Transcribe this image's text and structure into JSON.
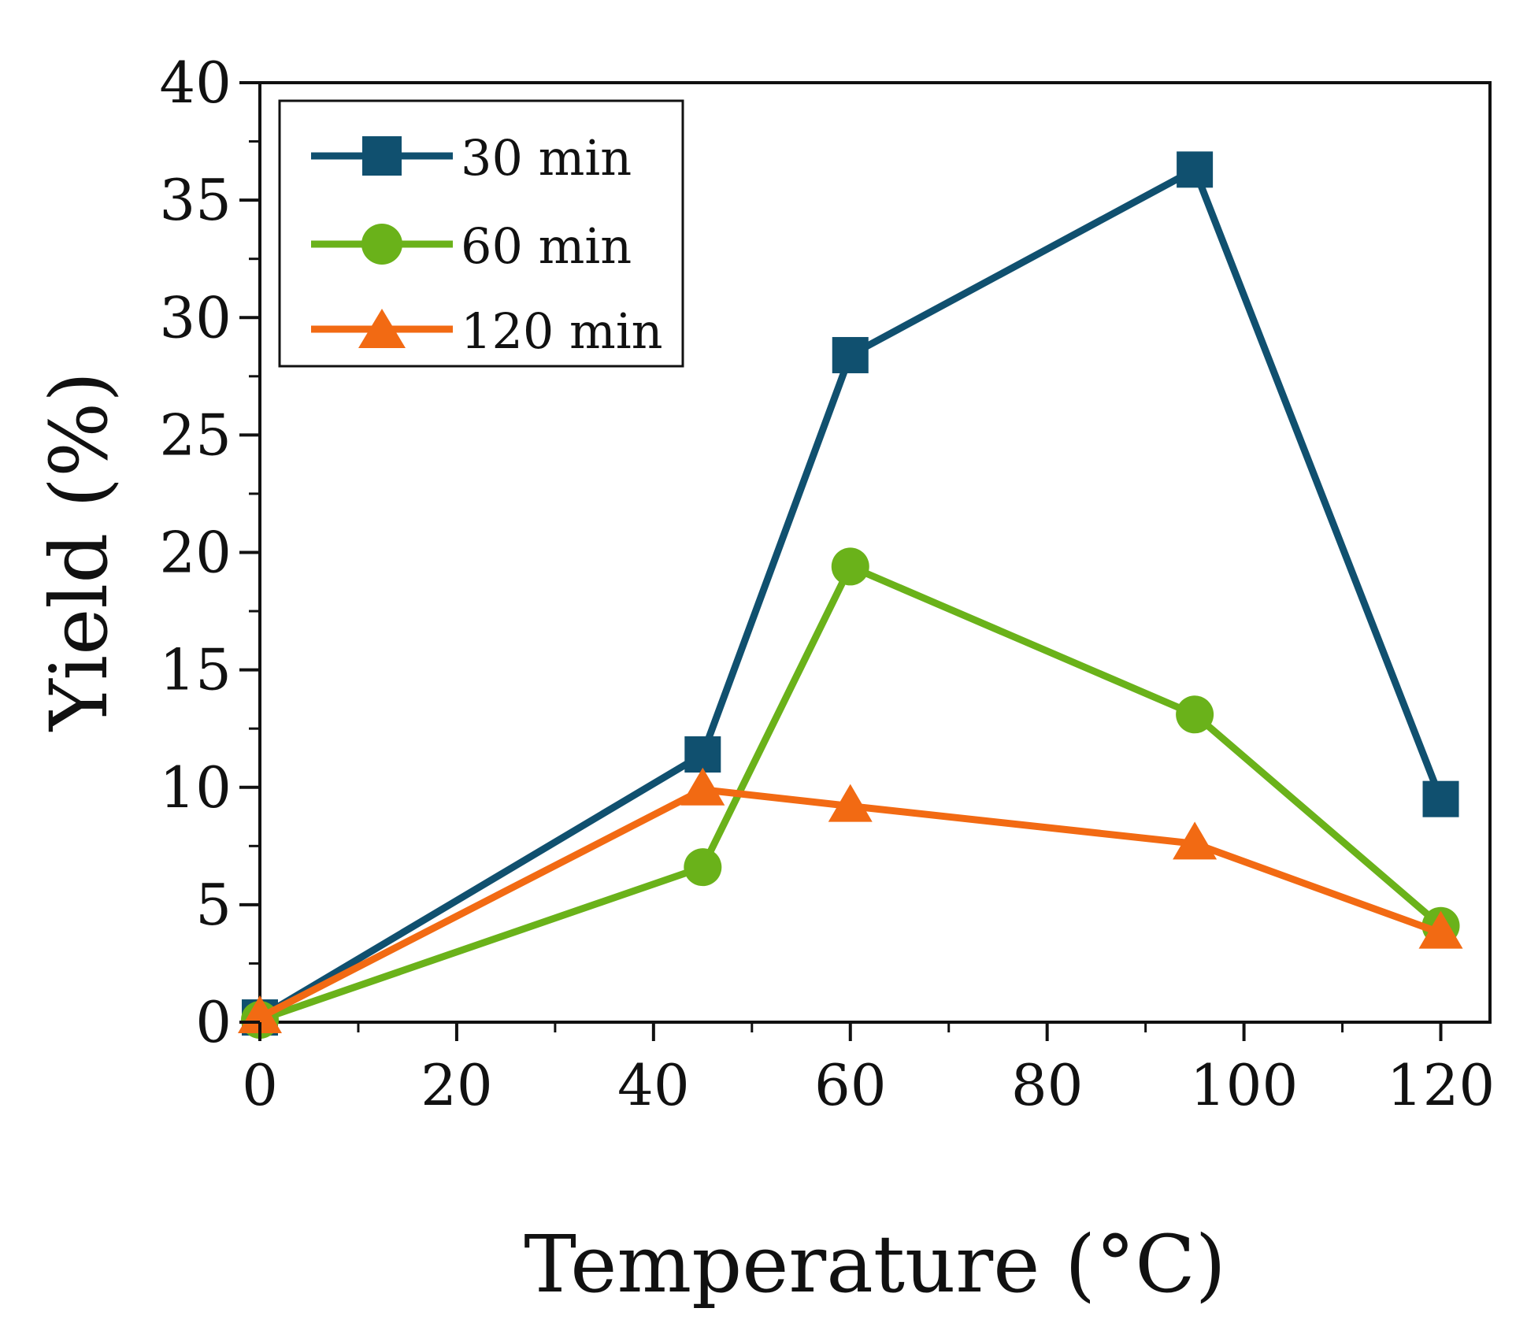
{
  "chart_data": {
    "type": "line",
    "xlabel": "Temperature (°C)",
    "ylabel": "Yield (%)",
    "xlim": [
      0,
      125
    ],
    "ylim": [
      0,
      40
    ],
    "xticks": [
      "0",
      "20",
      "40",
      "60",
      "80",
      "100",
      "120"
    ],
    "yticks": [
      "0",
      "5",
      "10",
      "15",
      "20",
      "25",
      "30",
      "35",
      "40"
    ],
    "legend_position": "top-left",
    "grid": false,
    "series": [
      {
        "name": "30 min",
        "marker": "square",
        "color": "#10506f",
        "x": [
          0,
          45,
          60,
          95,
          120
        ],
        "y": [
          0.2,
          11.4,
          28.4,
          36.3,
          9.5
        ]
      },
      {
        "name": "60 min",
        "marker": "circle",
        "color": "#6ab21a",
        "x": [
          0,
          45,
          60,
          95,
          120
        ],
        "y": [
          0.1,
          6.6,
          19.4,
          13.1,
          4.1
        ]
      },
      {
        "name": "120 min",
        "marker": "triangle",
        "color": "#f26a13",
        "x": [
          0,
          45,
          60,
          95,
          120
        ],
        "y": [
          0.2,
          9.9,
          9.2,
          7.6,
          3.8
        ]
      }
    ]
  }
}
